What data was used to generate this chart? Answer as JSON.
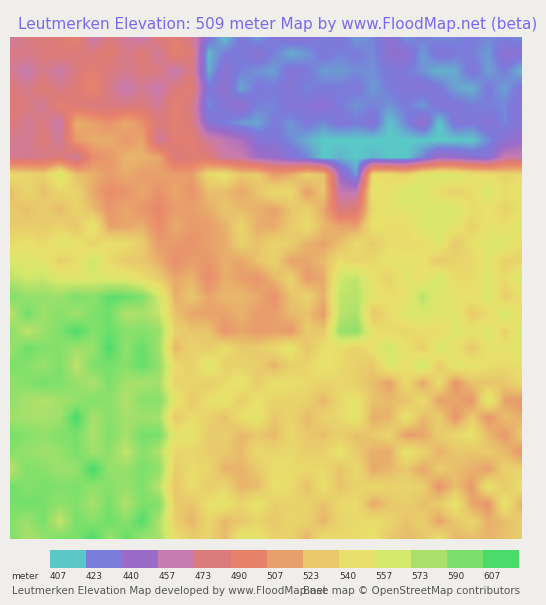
{
  "title": "Leutmerken Elevation: 509 meter Map by www.FloodMap.net (beta)",
  "title_color": "#7b68ee",
  "title_fontsize": 11,
  "background_color": "#f0eeea",
  "colorbar_values": [
    407,
    423,
    440,
    457,
    473,
    490,
    507,
    523,
    540,
    557,
    573,
    590,
    607
  ],
  "colorbar_colors": [
    "#5bc8c8",
    "#7b7bdb",
    "#9b6bc8",
    "#c87bb0",
    "#db7b7b",
    "#e8836b",
    "#e8a06b",
    "#e8c86b",
    "#e8e06b",
    "#d4e86b",
    "#a8e06b",
    "#7be06b",
    "#4bdb6b"
  ],
  "footer_left": "Leutmerken Elevation Map developed by www.FloodMap.net",
  "footer_right": "Base map © OpenStreetMap contributors",
  "footer_fontsize": 7.5,
  "colorbar_label": "meter"
}
